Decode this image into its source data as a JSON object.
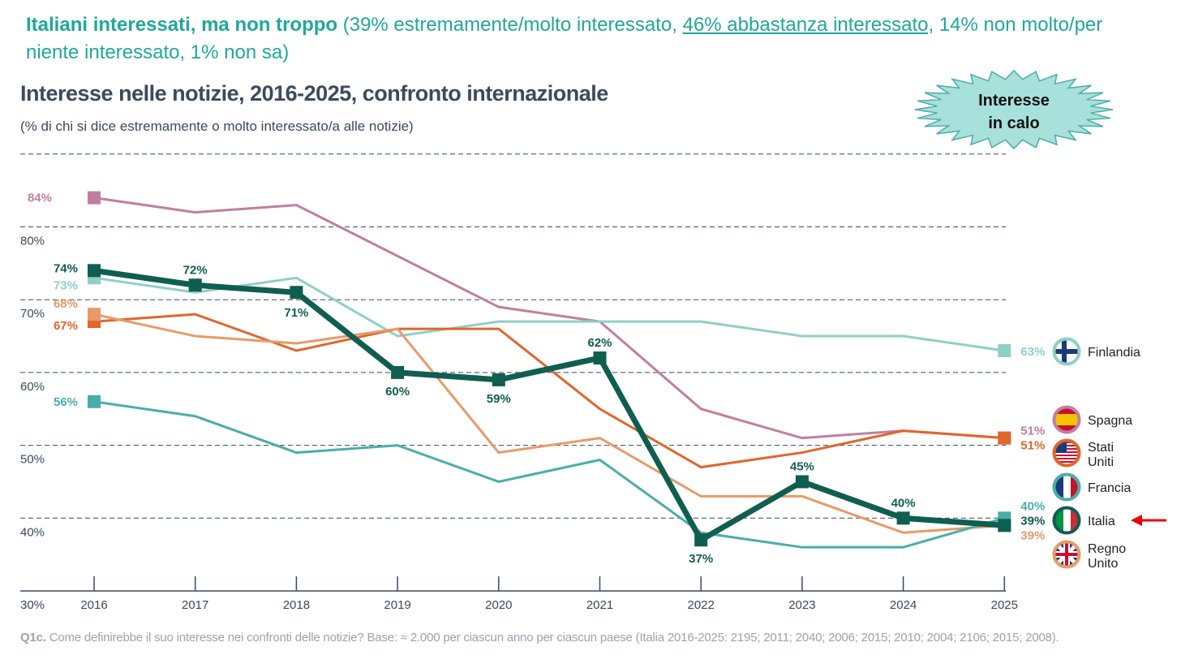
{
  "headline": {
    "bold": "Italiani interessati, ma non troppo",
    "part1": " (39% estremamente/molto interessato, ",
    "underlined": "46% abbastanza interessato,",
    "part2": " 14% non molto/per niente interessato, 1% non sa)"
  },
  "burst": {
    "line1": "Interesse",
    "line2": "in calo"
  },
  "footer": {
    "code": "Q1c.",
    "text": " Come definirebbe il suo interesse nei confronti delle notizie? Base: ≈ 2.000 per ciascun anno per ciascun paese (Italia 2016-2025: 2195; 2011; 2040; 2006; 2015; 2010; 2004; 2106; 2015; 2008)."
  },
  "chart_data": {
    "type": "line",
    "title": "Interesse nelle notizie, 2016-2025, confronto internazionale",
    "subtitle": "(% di chi si dice estremamente o molto interessato/a alle notizie)",
    "x": [
      2016,
      2017,
      2018,
      2019,
      2020,
      2021,
      2022,
      2023,
      2024,
      2025
    ],
    "ylim": [
      30,
      90
    ],
    "yticks": [
      "30%",
      "40%",
      "50%",
      "60%",
      "70%",
      "80%"
    ],
    "series": [
      {
        "name": "Spagna",
        "color": "#c07fa0",
        "width": 3,
        "values": [
          84,
          82,
          83,
          76,
          69,
          67,
          55,
          51,
          52,
          51
        ]
      },
      {
        "name": "Finlandia",
        "color": "#8fd0c6",
        "width": 3,
        "values": [
          73,
          71,
          73,
          65,
          67,
          67,
          67,
          65,
          65,
          63
        ]
      },
      {
        "name": "Stati Uniti",
        "color": "#e0662c",
        "width": 3,
        "values": [
          67,
          68,
          63,
          66,
          66,
          55,
          47,
          49,
          52,
          51
        ]
      },
      {
        "name": "Regno Unito",
        "color": "#e89a68",
        "width": 3,
        "values": [
          68,
          65,
          64,
          66,
          49,
          51,
          43,
          43,
          38,
          39
        ]
      },
      {
        "name": "Francia",
        "color": "#4aaea8",
        "width": 3,
        "values": [
          56,
          54,
          49,
          50,
          45,
          48,
          38,
          36,
          36,
          40
        ]
      },
      {
        "name": "Italia",
        "color": "#0f5e50",
        "width": 7,
        "values": [
          74,
          72,
          71,
          60,
          59,
          62,
          37,
          45,
          40,
          39
        ]
      }
    ],
    "legend": [
      {
        "name1": "Finlandia",
        "name2": "",
        "flag": "fi",
        "color": "#8fd0c6"
      },
      {
        "name1": "Spagna",
        "name2": "",
        "flag": "es",
        "color": "#c07fa0"
      },
      {
        "name1": "Stati",
        "name2": "Uniti",
        "flag": "us",
        "color": "#e0662c"
      },
      {
        "name1": "Francia",
        "name2": "",
        "flag": "fr",
        "color": "#4aaea8"
      },
      {
        "name1": "Italia",
        "name2": "",
        "flag": "it",
        "color": "#0f5e50"
      },
      {
        "name1": "Regno",
        "name2": "Unito",
        "flag": "uk",
        "color": "#e89a68"
      }
    ]
  }
}
